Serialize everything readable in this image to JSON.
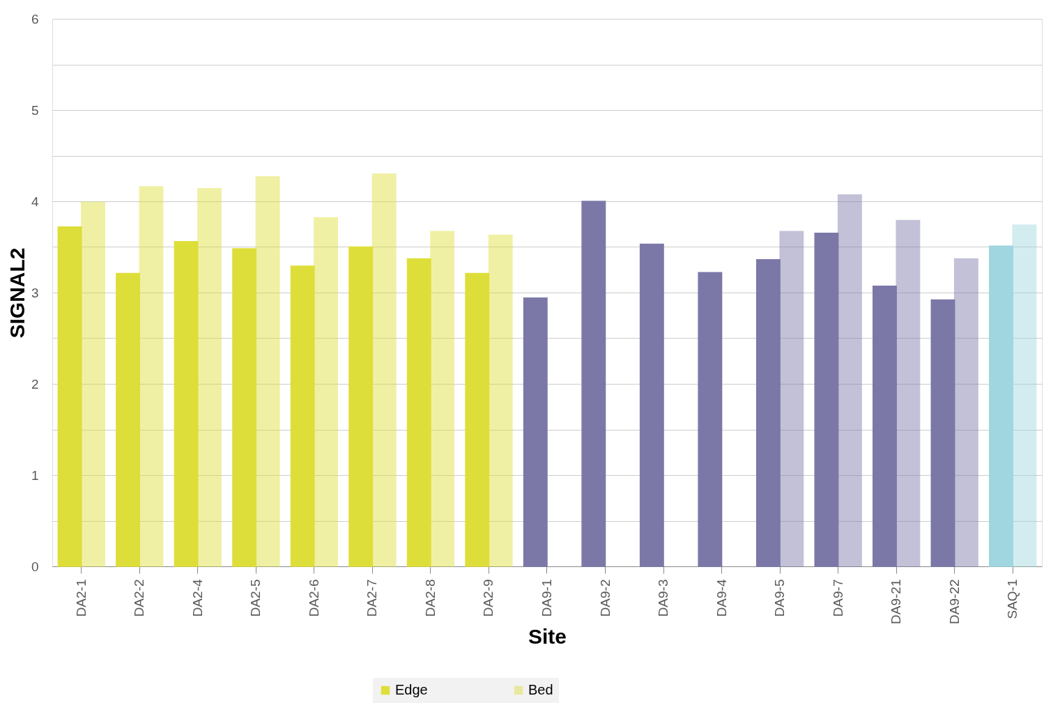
{
  "chart_data": {
    "type": "bar",
    "xlabel": "Site",
    "ylabel": "SIGNAL2",
    "categories": [
      "DA2-1",
      "DA2-2",
      "DA2-4",
      "DA2-5",
      "DA2-6",
      "DA2-7",
      "DA2-8",
      "DA2-9",
      "DA9-1",
      "DA9-2",
      "DA9-3",
      "DA9-4",
      "DA9-5",
      "DA9-7",
      "DA9-21",
      "DA9-22",
      "SAQ-1"
    ],
    "series": [
      {
        "name": "Edge",
        "colors": [
          "#dede3a",
          "#dede3a",
          "#dede3a",
          "#dede3a",
          "#dede3a",
          "#dede3a",
          "#dede3a",
          "#dede3a",
          "#7b78a8",
          "#7b78a8",
          "#7b78a8",
          "#7b78a8",
          "#7b78a8",
          "#7b78a8",
          "#7b78a8",
          "#7b78a8",
          "#9fd6df"
        ],
        "values": [
          3.72,
          3.21,
          3.56,
          3.48,
          3.29,
          3.5,
          3.37,
          3.21,
          2.94,
          4.0,
          3.53,
          3.22,
          3.36,
          3.65,
          3.07,
          2.92,
          3.51
        ]
      },
      {
        "name": "Bed",
        "colors": [
          "#dede3a",
          "#dede3a",
          "#dede3a",
          "#dede3a",
          "#dede3a",
          "#dede3a",
          "#dede3a",
          "#dede3a",
          "#7b78a8",
          "#7b78a8",
          "#7b78a8",
          "#7b78a8",
          "#7b78a8",
          "#7b78a8",
          "#7b78a8",
          "#7b78a8",
          "#9fd6df"
        ],
        "values": [
          3.99,
          4.16,
          4.14,
          4.27,
          3.82,
          4.3,
          3.67,
          3.63,
          null,
          null,
          null,
          null,
          3.67,
          4.07,
          3.79,
          3.37,
          3.74
        ]
      }
    ],
    "ylim": [
      0,
      6
    ],
    "yticks": [
      0,
      {
        "value": 0.5,
        "label": null
      },
      1,
      {
        "value": 1.5,
        "label": null
      },
      2,
      {
        "value": 2.5,
        "label": null
      },
      3,
      {
        "value": 3.5,
        "label": null
      },
      4,
      {
        "value": 4.5,
        "label": null
      },
      5,
      {
        "value": 5.5,
        "label": null
      },
      6
    ],
    "grid": "y",
    "legend": "bottom"
  }
}
